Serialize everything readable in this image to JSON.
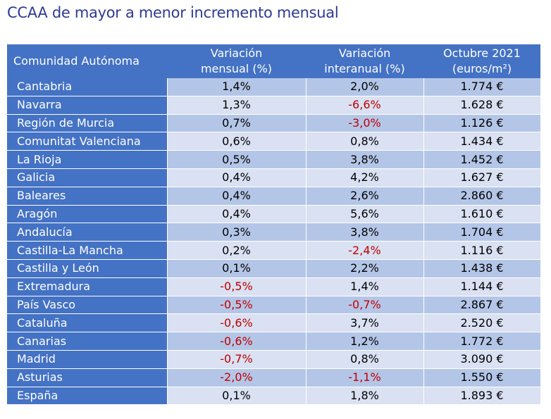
{
  "title": "CCAA de mayor a menor incremento mensual",
  "chart_data": {
    "type": "table",
    "columns": [
      "Comunidad Autónoma",
      "Variación mensual (%)",
      "Variación interanual (%)",
      "Octubre 2021 (euros/m²)"
    ],
    "header_lines": [
      [
        "Comunidad Autónoma"
      ],
      [
        "Variación",
        "mensual (%)"
      ],
      [
        "Variación",
        "interanual (%)"
      ],
      [
        "Octubre 2021",
        "(euros/m²)"
      ]
    ],
    "negative_color": "#c00000",
    "header_color": "#4472c4",
    "rows": [
      {
        "name": "Cantabria",
        "mensual": "1,4%",
        "interanual": "2,0%",
        "precio": "1.774 €"
      },
      {
        "name": "Navarra",
        "mensual": "1,3%",
        "interanual": "-6,6%",
        "precio": "1.628 €"
      },
      {
        "name": "Región de Murcia",
        "mensual": "0,7%",
        "interanual": "-3,0%",
        "precio": "1.126 €"
      },
      {
        "name": "Comunitat Valenciana",
        "mensual": "0,6%",
        "interanual": "0,8%",
        "precio": "1.434 €"
      },
      {
        "name": "La Rioja",
        "mensual": "0,5%",
        "interanual": "3,8%",
        "precio": "1.452 €"
      },
      {
        "name": "Galicia",
        "mensual": "0,4%",
        "interanual": "4,2%",
        "precio": "1.627 €"
      },
      {
        "name": "Baleares",
        "mensual": "0,4%",
        "interanual": "2,6%",
        "precio": "2.860 €"
      },
      {
        "name": "Aragón",
        "mensual": "0,4%",
        "interanual": "5,6%",
        "precio": "1.610 €"
      },
      {
        "name": "Andalucía",
        "mensual": "0,3%",
        "interanual": "3,8%",
        "precio": "1.704 €"
      },
      {
        "name": "Castilla-La Mancha",
        "mensual": "0,2%",
        "interanual": "-2,4%",
        "precio": "1.116 €"
      },
      {
        "name": "Castilla y León",
        "mensual": "0,1%",
        "interanual": "2,2%",
        "precio": "1.438 €"
      },
      {
        "name": "Extremadura",
        "mensual": "-0,5%",
        "interanual": "1,4%",
        "precio": "1.144 €"
      },
      {
        "name": "País Vasco",
        "mensual": "-0,5%",
        "interanual": "-0,7%",
        "precio": "2.867 €"
      },
      {
        "name": "Cataluña",
        "mensual": "-0,6%",
        "interanual": "3,7%",
        "precio": "2.520 €"
      },
      {
        "name": "Canarias",
        "mensual": "-0,6%",
        "interanual": "1,2%",
        "precio": "1.772 €"
      },
      {
        "name": "Madrid",
        "mensual": "-0,7%",
        "interanual": "0,8%",
        "precio": "3.090 €"
      },
      {
        "name": "Asturias",
        "mensual": "-2,0%",
        "interanual": "-1,1%",
        "precio": "1.550 €"
      },
      {
        "name": "España",
        "mensual": "0,1%",
        "interanual": "1,8%",
        "precio": "1.893 €"
      }
    ]
  }
}
